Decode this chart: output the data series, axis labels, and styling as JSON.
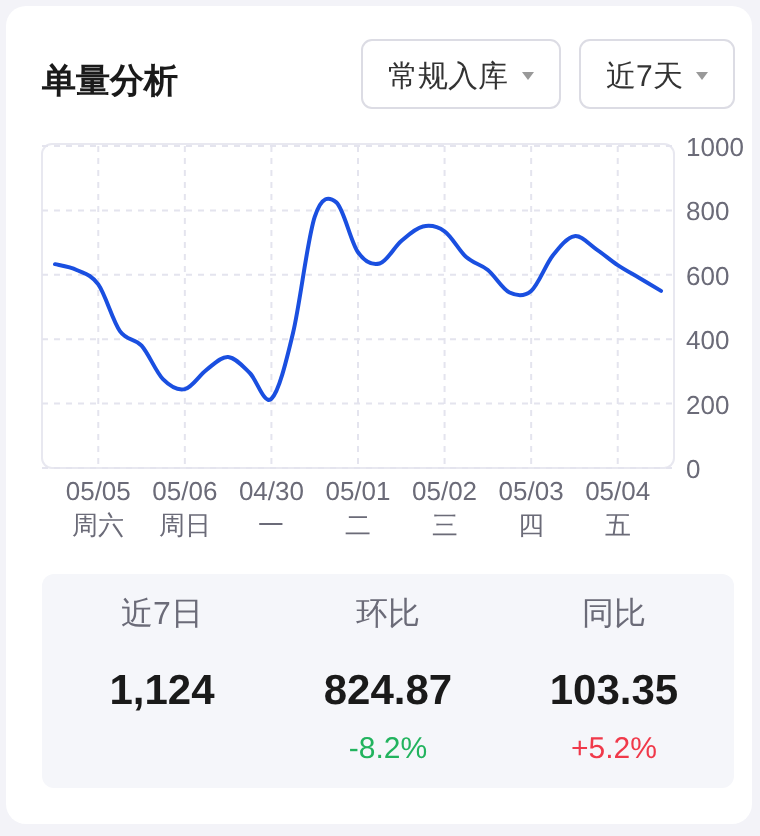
{
  "chart_data": [
    {
      "type": "line",
      "title": "单量分析",
      "annotations": [
        "常规入库",
        "近7天"
      ],
      "categories": [
        null,
        null,
        "05/05\n周六",
        null,
        null,
        null,
        "05/06\n周日",
        null,
        null,
        null,
        "04/30\n一",
        null,
        null,
        null,
        "05/01\n二",
        null,
        null,
        null,
        "05/02\n三",
        null,
        null,
        null,
        "05/03\n四",
        null,
        null,
        null,
        "05/04\n五",
        null,
        null
      ],
      "ylim": [
        0,
        1000
      ],
      "yticks": [
        0,
        200,
        400,
        600,
        800,
        1000
      ],
      "grid": true,
      "marker": "none",
      "line_style": "solid",
      "series": [
        {
          "color": "#1a4fe0",
          "values": [
            633,
            615,
            570,
            425,
            380,
            275,
            245,
            305,
            345,
            295,
            215,
            420,
            780,
            825,
            670,
            635,
            705,
            750,
            735,
            655,
            615,
            545,
            550,
            660,
            720,
            680,
            630,
            590,
            550
          ]
        }
      ]
    },
    {
      "type": "other",
      "annotations": [
        "近7日",
        "1,124",
        "环比",
        "824.87",
        "-8.2%",
        "同比",
        "103.35",
        "+5.2%"
      ]
    }
  ]
}
